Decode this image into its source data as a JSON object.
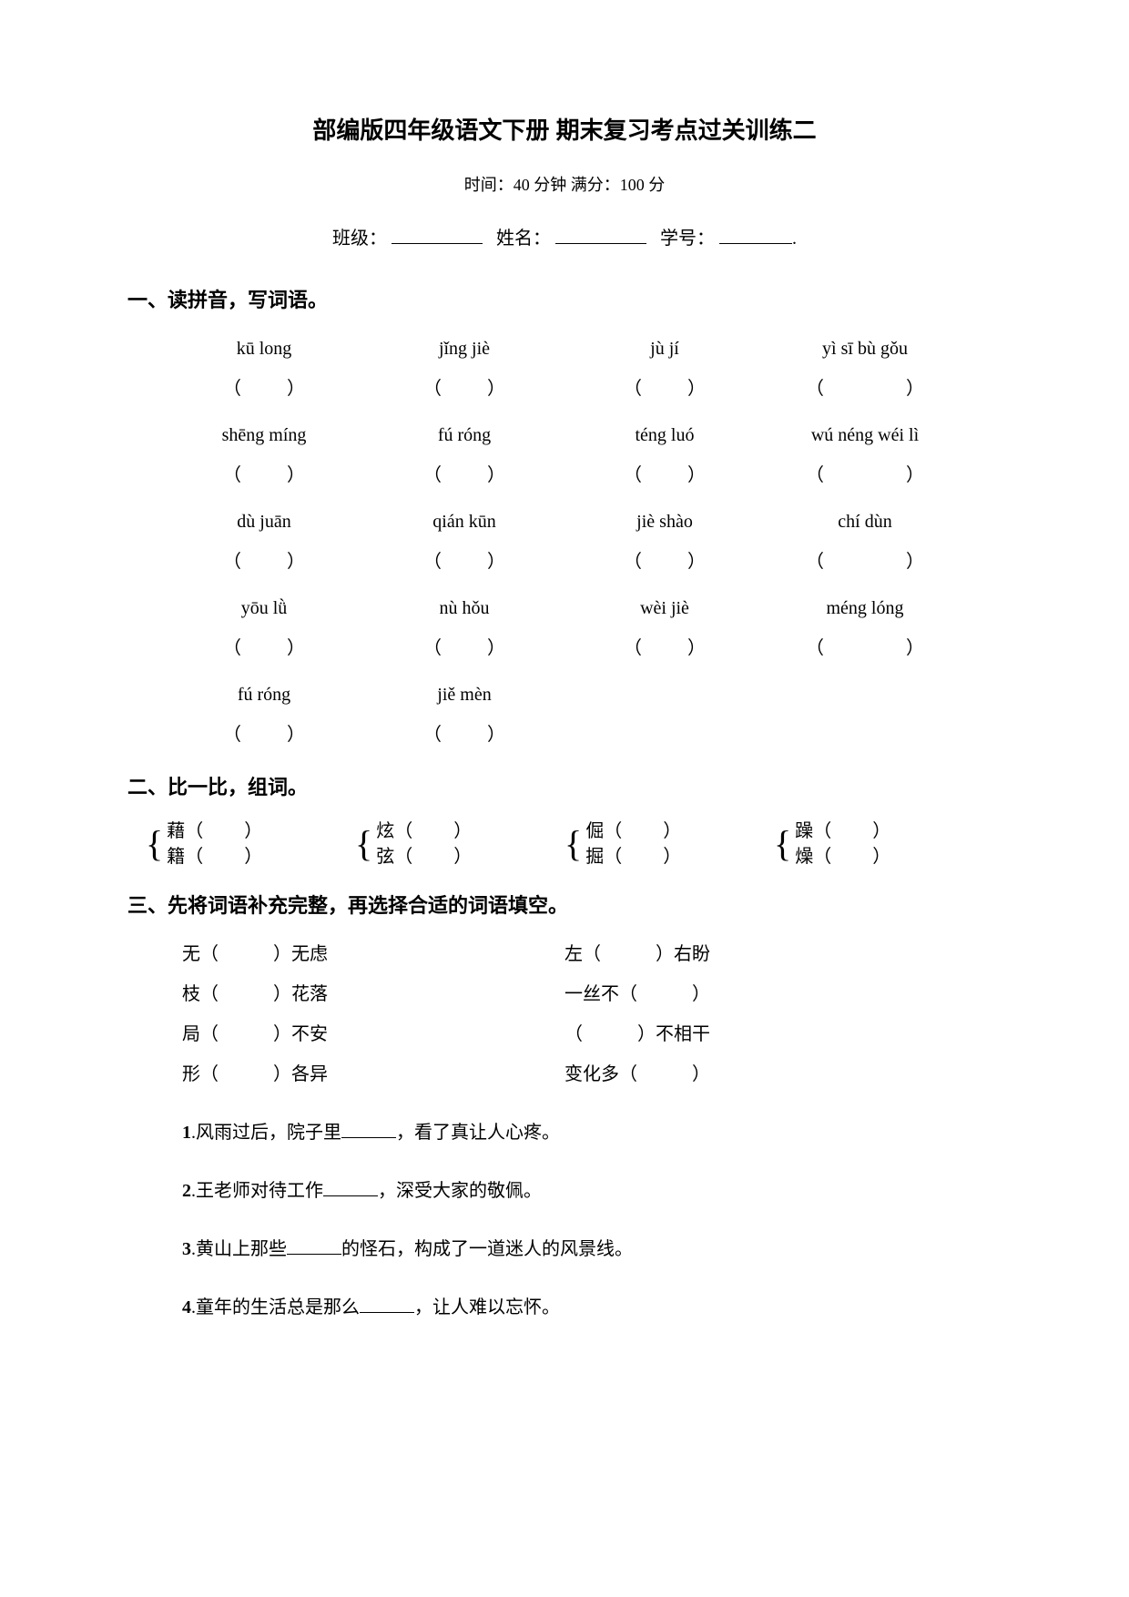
{
  "title": "部编版四年级语文下册 期末复习考点过关训练二",
  "subtitle": "时间：40 分钟 满分：100 分",
  "info": {
    "class_label": "班级：",
    "name_label": "姓名：",
    "id_label": "学号：",
    "period": "."
  },
  "section1": {
    "title": "一、读拼音，写词语。",
    "rows": [
      [
        "kū long",
        "jǐng jiè",
        "jù jí",
        "yì sī bù gǒu"
      ],
      [
        "shēng míng",
        "fú róng",
        "téng luó",
        "wú néng wéi lì"
      ],
      [
        "dù juān",
        "qián kūn",
        "jiè shào",
        "chí dùn"
      ],
      [
        "yōu lǜ",
        "nù hǒu",
        "wèi jiè",
        "méng lóng"
      ]
    ],
    "row5": [
      "fú róng",
      "jiě mèn"
    ]
  },
  "section2": {
    "title": "二、比一比，组词。",
    "groups": [
      [
        "藉（",
        "籍（"
      ],
      [
        "炫（",
        "弦（"
      ],
      [
        "倔（",
        "掘（"
      ],
      [
        "躁（",
        "燥（"
      ]
    ],
    "close": "）"
  },
  "section3": {
    "title": "三、先将词语补充完整，再选择合适的词语填空。",
    "idioms": [
      [
        "无（　　　）无虑",
        "左（　　　）右盼"
      ],
      [
        "枝（　　　）花落",
        "一丝不（　　　）"
      ],
      [
        "局（　　　）不安",
        "（　　　）不相干"
      ],
      [
        "形（　　　）各异",
        "变化多（　　　）"
      ]
    ],
    "sentences": [
      {
        "num": "1",
        "text_before": ".风雨过后，院子里",
        "text_after": "，看了真让人心疼。"
      },
      {
        "num": "2",
        "text_before": ".王老师对待工作",
        "text_after": "，深受大家的敬佩。"
      },
      {
        "num": "3",
        "text_before": ".黄山上那些",
        "text_after": "的怪石，构成了一道迷人的风景线。"
      },
      {
        "num": "4",
        "text_before": ".童年的生活总是那么",
        "text_after": "，让人难以忘怀。"
      }
    ]
  }
}
